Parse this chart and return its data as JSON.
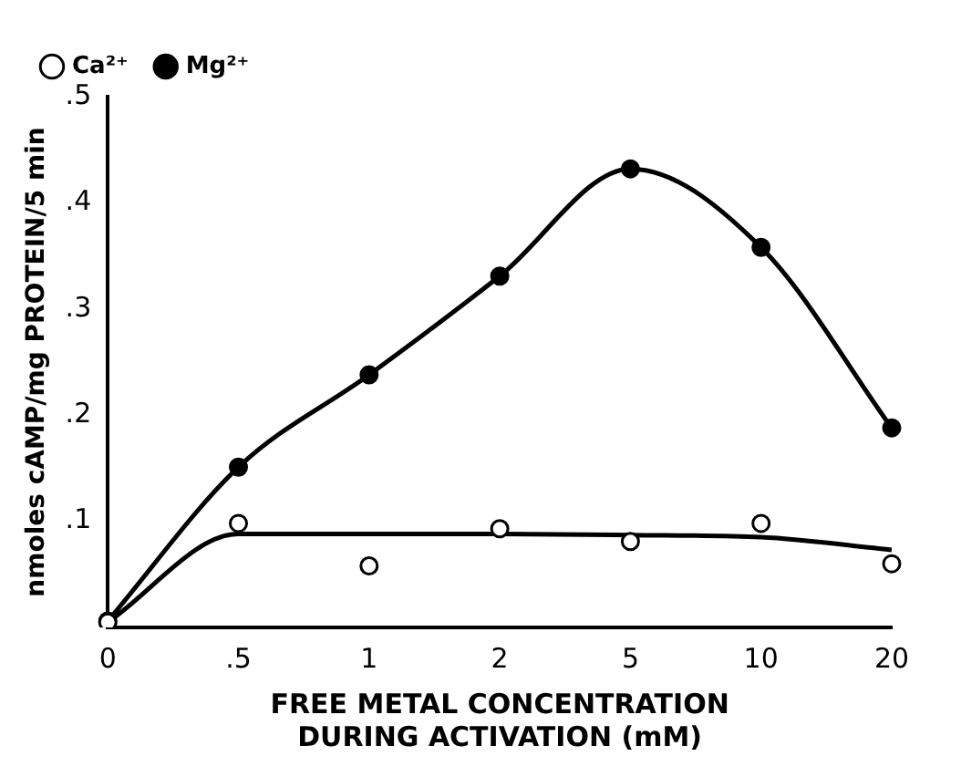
{
  "chart_data": {
    "type": "line",
    "xlabel": "FREE METAL CONCENTRATION\nDURING ACTIVATION (mM)",
    "ylabel": "nmoles cAMP/mg PROTEIN/5 min",
    "categories": [
      "0",
      ".5",
      "1",
      "2",
      "5",
      "10",
      "20"
    ],
    "series": [
      {
        "name": "Ca²⁺",
        "type": "scatter",
        "color": "#000000",
        "marker": "circle",
        "values": [
          0.005,
          0.098,
          0.058,
          0.093,
          0.081,
          0.098,
          0.06
        ]
      },
      {
        "color": "#000000",
        "marker": "none",
        "values": [
          0.005,
          0.088,
          0.088,
          0.088,
          0.087,
          0.085,
          0.073
        ]
      },
      {
        "name": "Mg²⁺",
        "type": "line",
        "color": "#000000",
        "marker": "circle",
        "values": [
          0.006,
          0.151,
          0.238,
          0.331,
          0.432,
          0.358,
          0.188
        ]
      }
    ],
    "ylim": [
      0,
      0.5
    ],
    "yticks": [
      {
        "value": 0,
        "label": null
      },
      {
        "value": 0.1,
        "label": ".1"
      },
      {
        "value": 0.2,
        "label": ".2"
      },
      {
        "value": 0.3,
        "label": ".3"
      },
      {
        "value": 0.4,
        "label": ".4"
      },
      {
        "value": 0.5,
        "label": ".5"
      }
    ],
    "grid": false,
    "legend": "top left"
  }
}
